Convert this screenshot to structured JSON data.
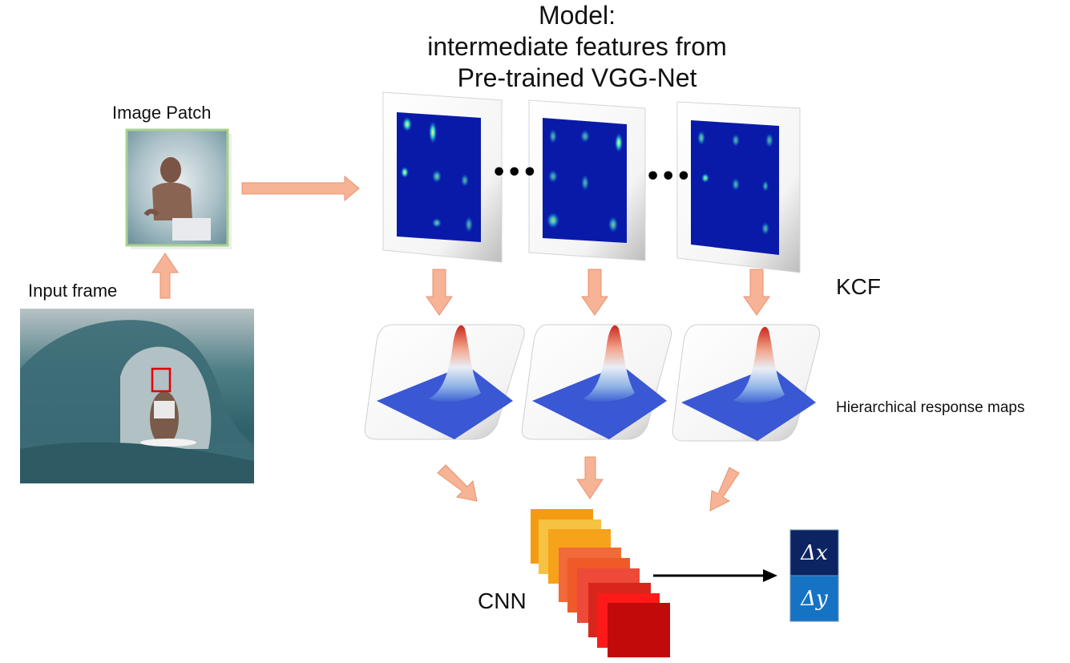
{
  "title": {
    "lines": [
      "Model:",
      "intermediate features from",
      "Pre-trained VGG-Net"
    ]
  },
  "labels": {
    "image_patch": "Image Patch",
    "input_frame": "Input frame",
    "kcf": "KCF",
    "response_maps": "Hierarchical response maps",
    "cnn": "CNN"
  },
  "ellipsis": [
    "•••",
    "•••"
  ],
  "outputs": {
    "dx": "Δx",
    "dy": "Δy"
  },
  "colors": {
    "arrow": "#f6b396",
    "arrow_stroke": "#e9926c",
    "feature_bg": "#0a1aa8",
    "patch_border": "#a9d18e",
    "target_box": "#e00000",
    "dx_box": "#0c2461",
    "dy_box": "#1673c4",
    "cnn_layers": [
      "#f39c12",
      "#f5c242",
      "#f7a21b",
      "#f06a3a",
      "#f0523a",
      "#ee4a3a",
      "#d9261c",
      "#ff1a1a",
      "#c30a0a"
    ]
  }
}
